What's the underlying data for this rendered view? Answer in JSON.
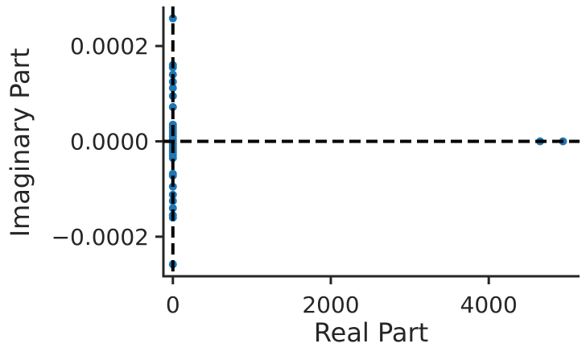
{
  "chart_data": {
    "type": "scatter",
    "title": "",
    "xlabel": "Real Part",
    "ylabel": "Imaginary Part",
    "xlim": [
      -120,
      5150
    ],
    "ylim": [
      -0.000283,
      0.000283
    ],
    "xticks": [
      0,
      2000,
      4000
    ],
    "xtick_labels": [
      "0",
      "2000",
      "4000"
    ],
    "yticks": [
      -0.0002,
      0.0,
      0.0002
    ],
    "ytick_labels": [
      "−0.0002",
      "0.0000",
      "0.0002"
    ],
    "grid": false,
    "reference_lines": [
      {
        "orientation": "vertical",
        "x": 0,
        "style": "dashed",
        "color": "#000000"
      },
      {
        "orientation": "horizontal",
        "y": 0,
        "style": "dashed",
        "color": "#000000"
      }
    ],
    "marker_color": "#1f77b4",
    "points": [
      {
        "x": 4650,
        "y": 0.0
      },
      {
        "x": 4940,
        "y": 0.0
      },
      {
        "x": 0,
        "y": 0.000258
      },
      {
        "x": 0,
        "y": 0.00016
      },
      {
        "x": 0,
        "y": 0.000155
      },
      {
        "x": 0,
        "y": 0.00014
      },
      {
        "x": 0,
        "y": 0.000125
      },
      {
        "x": 0,
        "y": 0.000112
      },
      {
        "x": 0,
        "y": 9.5e-05
      },
      {
        "x": 0,
        "y": 7.2e-05
      },
      {
        "x": 0,
        "y": 3.5e-05
      },
      {
        "x": 0,
        "y": 3e-05
      },
      {
        "x": 0,
        "y": 2.5e-05
      },
      {
        "x": 0,
        "y": 2e-05
      },
      {
        "x": 0,
        "y": 1.5e-05
      },
      {
        "x": 0,
        "y": 1e-05
      },
      {
        "x": 0,
        "y": 5e-06
      },
      {
        "x": 0,
        "y": 0.0
      },
      {
        "x": 0,
        "y": -5e-06
      },
      {
        "x": 0,
        "y": -1e-05
      },
      {
        "x": 0,
        "y": -1.5e-05
      },
      {
        "x": 0,
        "y": -2e-05
      },
      {
        "x": 0,
        "y": -2.5e-05
      },
      {
        "x": 0,
        "y": -3e-05
      },
      {
        "x": 0,
        "y": -3.5e-05
      },
      {
        "x": 0,
        "y": -6.8e-05
      },
      {
        "x": 0,
        "y": -7.2e-05
      },
      {
        "x": 0,
        "y": -9.5e-05
      },
      {
        "x": 0,
        "y": -0.000112
      },
      {
        "x": 0,
        "y": -0.000125
      },
      {
        "x": 0,
        "y": -0.00014
      },
      {
        "x": 0,
        "y": -0.000155
      },
      {
        "x": 0,
        "y": -0.00016
      },
      {
        "x": 0,
        "y": -0.000258
      }
    ]
  }
}
